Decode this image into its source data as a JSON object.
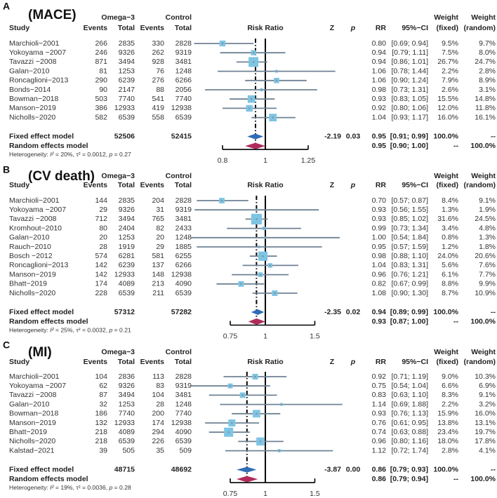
{
  "labels": {
    "study": "Study",
    "events": "Events",
    "total": "Total",
    "group1": "Omega−3",
    "group2": "Control",
    "risk_ratio": "Risk Ratio",
    "z": "Z",
    "p": "p",
    "rr": "RR",
    "ci": "95%−CI",
    "weight": "Weight",
    "fixed": "(fixed)",
    "random": "(random)",
    "fixed_model": "Fixed effect model",
    "random_model": "Random effects model",
    "heterogeneity": "Heterogeneity:",
    "i2": "I²",
    "tau2": "τ²",
    "p_sym": "p"
  },
  "colors": {
    "whisker": "#6f8294",
    "square": "#7ec4e3",
    "fixed_diamond": "#2f6db5",
    "random_diamond": "#b02a5c",
    "line": "#000000"
  },
  "chart_data": [
    {
      "type": "forest",
      "letter": "A",
      "title": "(MACE)",
      "scale": "log",
      "ticks": [
        0.8,
        1,
        1.25
      ],
      "tick_labels": [
        "0.8",
        "1",
        "1.25"
      ],
      "studies": [
        {
          "study": "Marchioli−2001",
          "e1": "266",
          "n1": "2835",
          "e2": "330",
          "n2": "2828",
          "rr": 0.8,
          "lo": 0.69,
          "hi": 0.94,
          "rr_text": "0.80",
          "ci_text": "[0.69; 0.94]",
          "wf": 9.5,
          "wf_text": "9.5%",
          "wr_text": "9.7%"
        },
        {
          "study": "Yokoyama −2007",
          "e1": "246",
          "n1": "9326",
          "e2": "262",
          "n2": "9319",
          "rr": 0.94,
          "lo": 0.79,
          "hi": 1.11,
          "rr_text": "0.94",
          "ci_text": "[0.79; 1.11]",
          "wf": 7.5,
          "wf_text": "7.5%",
          "wr_text": "8.0%"
        },
        {
          "study": "Tavazzi −2008",
          "e1": "871",
          "n1": "3494",
          "e2": "928",
          "n2": "3481",
          "rr": 0.94,
          "lo": 0.86,
          "hi": 1.01,
          "rr_text": "0.94",
          "ci_text": "[0.86; 1.01]",
          "wf": 26.7,
          "wf_text": "26.7%",
          "wr_text": "24.7%"
        },
        {
          "study": " Galan−2010",
          "e1": "81",
          "n1": "1253",
          "e2": "76",
          "n2": "1248",
          "rr": 1.06,
          "lo": 0.78,
          "hi": 1.44,
          "rr_text": "1.06",
          "ci_text": "[0.78; 1.44]",
          "wf": 2.2,
          "wf_text": "2.2%",
          "wr_text": "2.8%"
        },
        {
          "study": "Roncaglioni−2013",
          "e1": "290",
          "n1": "6239",
          "e2": "276",
          "n2": "6266",
          "rr": 1.06,
          "lo": 0.9,
          "hi": 1.24,
          "rr_text": "1.06",
          "ci_text": "[0.90; 1.24]",
          "wf": 7.9,
          "wf_text": "7.9%",
          "wr_text": "8.9%"
        },
        {
          "study": "Bonds−2014",
          "e1": "90",
          "n1": "2147",
          "e2": "88",
          "n2": "2056",
          "rr": 0.98,
          "lo": 0.73,
          "hi": 1.31,
          "rr_text": "0.98",
          "ci_text": "[0.73; 1.31]",
          "wf": 2.6,
          "wf_text": "2.6%",
          "wr_text": "3.1%"
        },
        {
          "study": "Bowman−2018",
          "e1": "503",
          "n1": "7740",
          "e2": "541",
          "n2": "7740",
          "rr": 0.93,
          "lo": 0.83,
          "hi": 1.05,
          "rr_text": "0.93",
          "ci_text": "[0.83; 1.05]",
          "wf": 15.5,
          "wf_text": "15.5%",
          "wr_text": "14.8%"
        },
        {
          "study": "Manson−2019",
          "e1": "386",
          "n1": "12933",
          "e2": "419",
          "n2": "12938",
          "rr": 0.92,
          "lo": 0.8,
          "hi": 1.06,
          "rr_text": "0.92",
          "ci_text": "[0.80; 1.06]",
          "wf": 12.0,
          "wf_text": "12.0%",
          "wr_text": "11.8%"
        },
        {
          "study": "Nicholls−2020",
          "e1": "582",
          "n1": "6539",
          "e2": "558",
          "n2": "6539",
          "rr": 1.04,
          "lo": 0.93,
          "hi": 1.17,
          "rr_text": "1.04",
          "ci_text": "[0.93; 1.17]",
          "wf": 16.0,
          "wf_text": "16.0%",
          "wr_text": "16.1%"
        }
      ],
      "fixed": {
        "n1": "52506",
        "n2": "52415",
        "z": "-2.19",
        "p": "0.03",
        "rr": 0.95,
        "lo": 0.91,
        "hi": 0.99,
        "rr_text": "0.95",
        "ci_text": "[0.91; 0.99]",
        "wf_text": "100.0%",
        "wr_text": "--"
      },
      "random": {
        "rr": 0.95,
        "lo": 0.9,
        "hi": 1.0,
        "rr_text": "0.95",
        "ci_text": "[0.90; 1.00]",
        "wf_text": "--",
        "wr_text": "100.0%"
      },
      "heterogeneity": {
        "i2": "20%",
        "tau2": "0.0012",
        "p": "0.27"
      }
    },
    {
      "type": "forest",
      "letter": "B",
      "title": "(CV death)",
      "scale": "log",
      "ticks": [
        0.75,
        1,
        1.5
      ],
      "tick_labels": [
        "0.75",
        "1",
        "1.5"
      ],
      "studies": [
        {
          "study": "Marchioli−2001",
          "e1": "144",
          "n1": "2835",
          "e2": "204",
          "n2": "2828",
          "rr": 0.7,
          "lo": 0.57,
          "hi": 0.87,
          "rr_text": "0.70",
          "ci_text": "[0.57; 0.87]",
          "wf": 8.4,
          "wf_text": "8.4%",
          "wr_text": "9.1%"
        },
        {
          "study": "Yokoyama −2007",
          "e1": "29",
          "n1": "9326",
          "e2": "31",
          "n2": "9319",
          "rr": 0.93,
          "lo": 0.56,
          "hi": 1.55,
          "rr_text": "0.93",
          "ci_text": "[0.56; 1.55]",
          "wf": 1.3,
          "wf_text": "1.3%",
          "wr_text": "1.9%"
        },
        {
          "study": "Tavazzi −2008",
          "e1": "712",
          "n1": "3494",
          "e2": "765",
          "n2": "3481",
          "rr": 0.93,
          "lo": 0.85,
          "hi": 1.02,
          "rr_text": "0.93",
          "ci_text": "[0.85; 1.02]",
          "wf": 31.6,
          "wf_text": "31.6%",
          "wr_text": "24.5%"
        },
        {
          "study": "Kromhout−2010",
          "e1": "80",
          "n1": "2404",
          "e2": "82",
          "n2": "2433",
          "rr": 0.99,
          "lo": 0.73,
          "hi": 1.34,
          "rr_text": "0.99",
          "ci_text": "[0.73; 1.34]",
          "wf": 3.4,
          "wf_text": "3.4%",
          "wr_text": "4.8%"
        },
        {
          "study": " Galan−2010",
          "e1": "20",
          "n1": "1253",
          "e2": "20",
          "n2": "1248",
          "rr": 1.0,
          "lo": 0.54,
          "hi": 1.84,
          "rr_text": "1.00",
          "ci_text": "[0.54; 1.84]",
          "wf": 0.8,
          "wf_text": "0.8%",
          "wr_text": "1.3%"
        },
        {
          "study": "Rauch−2010",
          "e1": "28",
          "n1": "1919",
          "e2": "29",
          "n2": "1885",
          "rr": 0.95,
          "lo": 0.57,
          "hi": 1.59,
          "rr_text": "0.95",
          "ci_text": "[0.57; 1.59]",
          "wf": 1.2,
          "wf_text": "1.2%",
          "wr_text": "1.8%"
        },
        {
          "study": "Bosch −2012",
          "e1": "574",
          "n1": "6281",
          "e2": "581",
          "n2": "6255",
          "rr": 0.98,
          "lo": 0.88,
          "hi": 1.1,
          "rr_text": "0.98",
          "ci_text": "[0.88; 1.10]",
          "wf": 24.0,
          "wf_text": "24.0%",
          "wr_text": "20.6%"
        },
        {
          "study": "Roncaglioni−2013",
          "e1": "142",
          "n1": "6239",
          "e2": "137",
          "n2": "6266",
          "rr": 1.04,
          "lo": 0.83,
          "hi": 1.31,
          "rr_text": "1.04",
          "ci_text": "[0.83; 1.31]",
          "wf": 5.6,
          "wf_text": "5.6%",
          "wr_text": "7.6%"
        },
        {
          "study": "Manson−2019",
          "e1": "142",
          "n1": "12933",
          "e2": "148",
          "n2": "12938",
          "rr": 0.96,
          "lo": 0.76,
          "hi": 1.21,
          "rr_text": "0.96",
          "ci_text": "[0.76; 1.21]",
          "wf": 6.1,
          "wf_text": "6.1%",
          "wr_text": "7.7%"
        },
        {
          "study": "Bhatt−2019",
          "e1": "174",
          "n1": "4089",
          "e2": "213",
          "n2": "4090",
          "rr": 0.82,
          "lo": 0.67,
          "hi": 0.99,
          "rr_text": "0.82",
          "ci_text": "[0.67; 0.99]",
          "wf": 8.8,
          "wf_text": "8.8%",
          "wr_text": "9.9%"
        },
        {
          "study": "Nicholls−2020",
          "e1": "228",
          "n1": "6539",
          "e2": "211",
          "n2": "6539",
          "rr": 1.08,
          "lo": 0.9,
          "hi": 1.3,
          "rr_text": "1.08",
          "ci_text": "[0.90; 1.30]",
          "wf": 8.7,
          "wf_text": "8.7%",
          "wr_text": "10.9%"
        }
      ],
      "fixed": {
        "n1": "57312",
        "n2": "57282",
        "z": "-2.35",
        "p": "0.02",
        "rr": 0.94,
        "lo": 0.89,
        "hi": 0.99,
        "rr_text": "0.94",
        "ci_text": "[0.89; 0.99]",
        "wf_text": "100.0%",
        "wr_text": "--"
      },
      "random": {
        "rr": 0.93,
        "lo": 0.87,
        "hi": 1.0,
        "rr_text": "0.93",
        "ci_text": "[0.87; 1.00]",
        "wf_text": "--",
        "wr_text": "100.0%"
      },
      "heterogeneity": {
        "i2": "25%",
        "tau2": "0.0032",
        "p": "0.21"
      }
    },
    {
      "type": "forest",
      "letter": "C",
      "title": "(MI)",
      "scale": "log",
      "ticks": [
        0.75,
        1,
        1.5
      ],
      "tick_labels": [
        "0.75",
        "1",
        "1.5"
      ],
      "studies": [
        {
          "study": "Marchioli−2001",
          "e1": "104",
          "n1": "2836",
          "e2": "113",
          "n2": "2828",
          "rr": 0.92,
          "lo": 0.71,
          "hi": 1.19,
          "rr_text": "0.92",
          "ci_text": "[0.71; 1.19]",
          "wf": 9.0,
          "wf_text": "9.0%",
          "wr_text": "10.3%"
        },
        {
          "study": "Yokoyama −2007",
          "e1": "62",
          "n1": "9326",
          "e2": "83",
          "n2": "9319",
          "rr": 0.75,
          "lo": 0.54,
          "hi": 1.04,
          "rr_text": "0.75",
          "ci_text": "[0.54; 1.04]",
          "wf": 6.6,
          "wf_text": "6.6%",
          "wr_text": "6.9%"
        },
        {
          "study": "Tavazzi −2008",
          "e1": "87",
          "n1": "3494",
          "e2": "104",
          "n2": "3481",
          "rr": 0.83,
          "lo": 0.63,
          "hi": 1.1,
          "rr_text": "0.83",
          "ci_text": "[0.63; 1.10]",
          "wf": 8.3,
          "wf_text": "8.3%",
          "wr_text": "9.1%"
        },
        {
          "study": " Galan−2010",
          "e1": "32",
          "n1": "1253",
          "e2": "28",
          "n2": "1248",
          "rr": 1.14,
          "lo": 0.69,
          "hi": 1.88,
          "rr_text": "1.14",
          "ci_text": "[0.69; 1.88]",
          "wf": 2.2,
          "wf_text": "2.2%",
          "wr_text": "3.2%"
        },
        {
          "study": "Bowman−2018",
          "e1": "186",
          "n1": "7740",
          "e2": "200",
          "n2": "7740",
          "rr": 0.93,
          "lo": 0.76,
          "hi": 1.13,
          "rr_text": "0.93",
          "ci_text": "[0.76; 1.13]",
          "wf": 15.9,
          "wf_text": "15.9%",
          "wr_text": "16.0%"
        },
        {
          "study": "Manson−2019",
          "e1": "132",
          "n1": "12933",
          "e2": "174",
          "n2": "12938",
          "rr": 0.76,
          "lo": 0.61,
          "hi": 0.95,
          "rr_text": "0.76",
          "ci_text": "[0.61; 0.95]",
          "wf": 13.8,
          "wf_text": "13.8%",
          "wr_text": "13.1%"
        },
        {
          "study": "Bhatt−2019",
          "e1": "218",
          "n1": "4089",
          "e2": "294",
          "n2": "4090",
          "rr": 0.74,
          "lo": 0.63,
          "hi": 0.88,
          "rr_text": "0.74",
          "ci_text": "[0.63; 0.88]",
          "wf": 23.4,
          "wf_text": "23.4%",
          "wr_text": "19.7%"
        },
        {
          "study": "Nicholls−2020",
          "e1": "218",
          "n1": "6539",
          "e2": "226",
          "n2": "6539",
          "rr": 0.96,
          "lo": 0.8,
          "hi": 1.16,
          "rr_text": "0.96",
          "ci_text": "[0.80; 1.16]",
          "wf": 18.0,
          "wf_text": "18.0%",
          "wr_text": "17.8%"
        },
        {
          "study": "Kalstad−2021",
          "e1": "39",
          "n1": "505",
          "e2": "35",
          "n2": "509",
          "rr": 1.12,
          "lo": 0.72,
          "hi": 1.74,
          "rr_text": "1.12",
          "ci_text": "[0.72; 1.74]",
          "wf": 2.8,
          "wf_text": "2.8%",
          "wr_text": "4.1%"
        }
      ],
      "fixed": {
        "n1": "48715",
        "n2": "48692",
        "z": "-3.87",
        "p": "0.00",
        "rr": 0.86,
        "lo": 0.79,
        "hi": 0.93,
        "rr_text": "0.86",
        "ci_text": "[0.79; 0.93]",
        "wf_text": "100.0%",
        "wr_text": "--"
      },
      "random": {
        "rr": 0.86,
        "lo": 0.79,
        "hi": 0.94,
        "rr_text": "0.86",
        "ci_text": "[0.79; 0.94]",
        "wf_text": "--",
        "wr_text": "100.0%"
      },
      "heterogeneity": {
        "i2": "19%",
        "tau2": "0.0036",
        "p": "0.28"
      }
    }
  ]
}
